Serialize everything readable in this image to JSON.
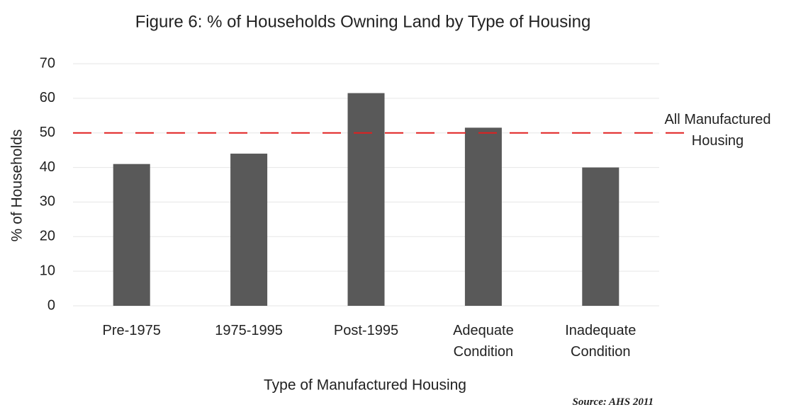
{
  "chart_data": {
    "type": "bar",
    "title": "Figure 6: % of Households Owning Land by Type of Housing",
    "x_label": "Type of Manufactured Housing",
    "y_label": "% of Households",
    "categories": [
      "Pre-1975",
      "1975-1995",
      "Post-1995",
      "Adequate Condition",
      "Inadequate Condition"
    ],
    "values": [
      41,
      44,
      61.5,
      51.5,
      40
    ],
    "color": "#595959",
    "ylim": [
      0,
      70
    ],
    "yticks": [
      0,
      10,
      20,
      30,
      40,
      50,
      60,
      70
    ],
    "grid": true,
    "reference_line": {
      "value": 50,
      "label": "All Manufactured Housing",
      "color": "#e02020"
    },
    "source": "Source: AHS 2011"
  }
}
